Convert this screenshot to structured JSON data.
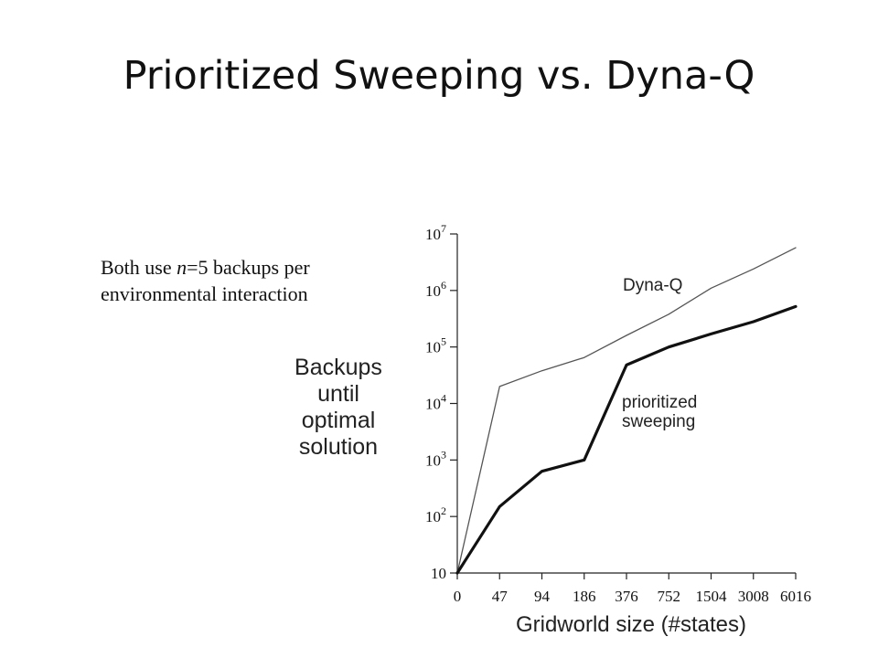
{
  "slide": {
    "title": "Prioritized Sweeping vs. Dyna-Q",
    "note_pre": "Both use ",
    "note_var": "n",
    "note_post": "=5 backups per",
    "note_line2": "environmental interaction"
  },
  "chart_data": {
    "type": "line",
    "title": "",
    "xlabel": "Gridworld size (#states)",
    "ylabel_lines": [
      "Backups",
      "until",
      "optimal",
      "solution"
    ],
    "categories": [
      "0",
      "47",
      "94",
      "186",
      "376",
      "752",
      "1504",
      "3008",
      "6016"
    ],
    "y_scale": "log",
    "ylim": [
      10,
      10000000
    ],
    "y_ticks": [
      {
        "value": 10,
        "base": "10",
        "exp": ""
      },
      {
        "value": 100,
        "base": "10",
        "exp": "2"
      },
      {
        "value": 1000,
        "base": "10",
        "exp": "3"
      },
      {
        "value": 10000,
        "base": "10",
        "exp": "4"
      },
      {
        "value": 100000,
        "base": "10",
        "exp": "5"
      },
      {
        "value": 1000000,
        "base": "10",
        "exp": "6"
      },
      {
        "value": 10000000,
        "base": "10",
        "exp": "7"
      }
    ],
    "grid": false,
    "series": [
      {
        "name": "Dyna-Q",
        "label_lines": [
          "Dyna-Q"
        ],
        "color": "#555555",
        "x": [
          "0",
          "47",
          "94",
          "186",
          "376",
          "752",
          "1504",
          "3008",
          "6016"
        ],
        "values": [
          10,
          20000,
          38000,
          65000,
          160000,
          380000,
          1100000,
          2400000,
          5700000
        ]
      },
      {
        "name": "prioritized sweeping",
        "label_lines": [
          "prioritized",
          "sweeping"
        ],
        "color": "#111111",
        "x": [
          "0",
          "47",
          "94",
          "186",
          "376",
          "752",
          "1504",
          "3008",
          "6016"
        ],
        "values": [
          10,
          150,
          630,
          1000,
          48000,
          100000,
          170000,
          280000,
          520000
        ]
      }
    ]
  }
}
